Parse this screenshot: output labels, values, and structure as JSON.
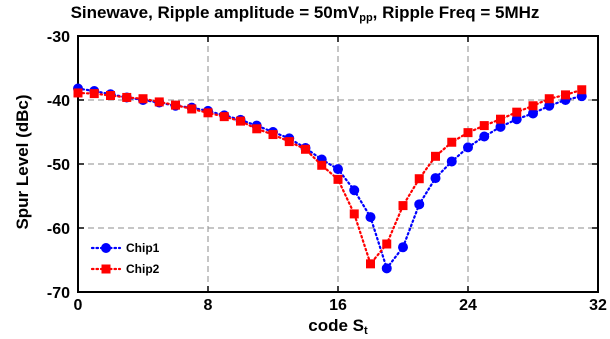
{
  "title": {
    "prefix": "Sinewave, Ripple amplitude = 50mV",
    "sub": "pp",
    "suffix": ", Ripple Freq = 5MHz"
  },
  "chart_data": {
    "type": "line",
    "xlabel_main": "code S",
    "xlabel_sub": "t",
    "ylabel": "Spur Level (dBc)",
    "xlim": [
      0,
      32
    ],
    "ylim": [
      -70,
      -30
    ],
    "xticks": [
      0,
      8,
      16,
      24,
      32
    ],
    "yticks": [
      -70,
      -60,
      -50,
      -40,
      -30
    ],
    "xtick_labels": [
      "0",
      "8",
      "16",
      "24",
      "32"
    ],
    "ytick_labels": [
      "-70",
      "-60",
      "-50",
      "-40",
      "-30"
    ],
    "grid": true,
    "legend_position": "bottom-left",
    "series": [
      {
        "name": "Chip1",
        "color": "#0000ff",
        "marker": "circle",
        "line": "dotted",
        "x": [
          0,
          1,
          2,
          3,
          4,
          5,
          6,
          7,
          8,
          9,
          10,
          11,
          12,
          13,
          14,
          15,
          16,
          17,
          18,
          19,
          20,
          21,
          22,
          23,
          24,
          25,
          26,
          27,
          28,
          29,
          30,
          31
        ],
        "y": [
          -38.2,
          -38.6,
          -39.1,
          -39.6,
          -40.0,
          -40.4,
          -40.9,
          -41.2,
          -41.7,
          -42.4,
          -43.1,
          -44.0,
          -45.0,
          -46.0,
          -47.5,
          -49.3,
          -50.8,
          -54.1,
          -58.3,
          -66.3,
          -63.0,
          -56.3,
          -52.2,
          -49.6,
          -47.4,
          -45.7,
          -44.2,
          -43.0,
          -42.1,
          -40.9,
          -40.0,
          -39.4
        ]
      },
      {
        "name": "Chip2",
        "color": "#ff0000",
        "marker": "square",
        "line": "dotted",
        "x": [
          0,
          1,
          2,
          3,
          4,
          5,
          6,
          7,
          8,
          9,
          10,
          11,
          12,
          13,
          14,
          15,
          16,
          17,
          18,
          19,
          20,
          21,
          22,
          23,
          24,
          25,
          26,
          27,
          28,
          29,
          30,
          31
        ],
        "y": [
          -38.9,
          -39.0,
          -39.3,
          -39.6,
          -39.8,
          -40.3,
          -40.8,
          -41.4,
          -42.0,
          -42.6,
          -43.3,
          -44.5,
          -45.4,
          -46.5,
          -47.7,
          -50.2,
          -52.4,
          -57.8,
          -65.6,
          -62.5,
          -56.5,
          -52.3,
          -48.8,
          -46.6,
          -45.1,
          -44.0,
          -43.0,
          -41.9,
          -40.9,
          -39.8,
          -39.2,
          -38.4
        ]
      }
    ]
  }
}
